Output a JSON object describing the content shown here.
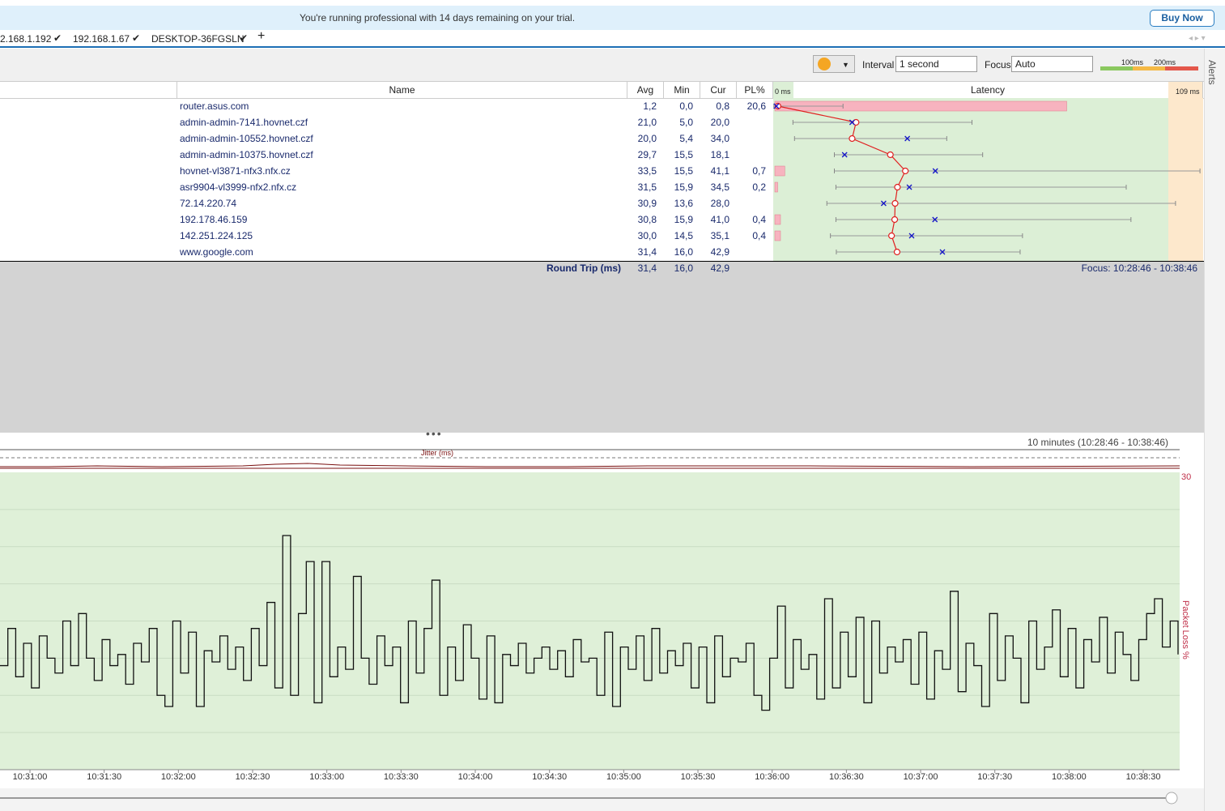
{
  "banner": {
    "message": "You're running professional with 14 days remaining on your trial.",
    "button": "Buy Now"
  },
  "tabs": [
    "2.168.1.192",
    "192.168.1.67",
    "DESKTOP-36FGSLN"
  ],
  "toolbar": {
    "interval_label": "Interval",
    "interval": "1 second",
    "focus_label": "Focus",
    "focus": "Auto",
    "legend": [
      "100ms",
      "200ms"
    ],
    "alerts": "Alerts"
  },
  "table": {
    "columns": [
      "Name",
      "Avg",
      "Min",
      "Cur",
      "PL%",
      "Latency"
    ],
    "latency_ticks": [
      {
        "value": 0,
        "label": "0 ms"
      },
      {
        "value": 109,
        "label": "109 ms"
      }
    ],
    "rows": [
      {
        "name": "router.asus.com",
        "avg": {
          "value": 1.2,
          "label": "1,2"
        },
        "min": {
          "value": 0.0,
          "label": "0,0"
        },
        "cur": {
          "value": 0.8,
          "label": "0,8"
        },
        "pl": {
          "value": 20.6,
          "label": "20,6"
        },
        "max": 17.7
      },
      {
        "name": "admin-admin-7141.hovnet.czf",
        "avg": {
          "value": 21.0,
          "label": "21,0"
        },
        "min": {
          "value": 5.0,
          "label": "5,0"
        },
        "cur": {
          "value": 20.0,
          "label": "20,0"
        },
        "pl": null,
        "max": 50.4
      },
      {
        "name": "admin-admin-10552.hovnet.czf",
        "avg": {
          "value": 20.0,
          "label": "20,0"
        },
        "min": {
          "value": 5.4,
          "label": "5,4"
        },
        "cur": {
          "value": 34.0,
          "label": "34,0"
        },
        "pl": null,
        "max": 44.0
      },
      {
        "name": "admin-admin-10375.hovnet.czf",
        "avg": {
          "value": 29.7,
          "label": "29,7"
        },
        "min": {
          "value": 15.5,
          "label": "15,5"
        },
        "cur": {
          "value": 18.1,
          "label": "18,1"
        },
        "pl": null,
        "max": 53.1
      },
      {
        "name": "hovnet-vl3871-nfx3.nfx.cz",
        "avg": {
          "value": 33.5,
          "label": "33,5"
        },
        "min": {
          "value": 15.5,
          "label": "15,5"
        },
        "cur": {
          "value": 41.1,
          "label": "41,1"
        },
        "pl": {
          "value": 0.7,
          "label": "0,7"
        },
        "max": 108.2
      },
      {
        "name": "asr9904-vl3999-nfx2.nfx.cz",
        "avg": {
          "value": 31.5,
          "label": "31,5"
        },
        "min": {
          "value": 15.9,
          "label": "15,9"
        },
        "cur": {
          "value": 34.5,
          "label": "34,5"
        },
        "pl": {
          "value": 0.2,
          "label": "0,2"
        },
        "max": 89.5
      },
      {
        "name": "72.14.220.74",
        "avg": {
          "value": 30.9,
          "label": "30,9"
        },
        "min": {
          "value": 13.6,
          "label": "13,6"
        },
        "cur": {
          "value": 28.0,
          "label": "28,0"
        },
        "pl": null,
        "max": 102.0
      },
      {
        "name": "192.178.46.159",
        "avg": {
          "value": 30.8,
          "label": "30,8"
        },
        "min": {
          "value": 15.9,
          "label": "15,9"
        },
        "cur": {
          "value": 41.0,
          "label": "41,0"
        },
        "pl": {
          "value": 0.4,
          "label": "0,4"
        },
        "max": 90.7
      },
      {
        "name": "142.251.224.125",
        "avg": {
          "value": 30.0,
          "label": "30,0"
        },
        "min": {
          "value": 14.5,
          "label": "14,5"
        },
        "cur": {
          "value": 35.1,
          "label": "35,1"
        },
        "pl": {
          "value": 0.4,
          "label": "0,4"
        },
        "max": 63.2
      },
      {
        "name": "www.google.com",
        "avg": {
          "value": 31.4,
          "label": "31,4"
        },
        "min": {
          "value": 16.0,
          "label": "16,0"
        },
        "cur": {
          "value": 42.9,
          "label": "42,9"
        },
        "pl": null,
        "max": 62.6
      }
    ],
    "summary": {
      "label": "Round Trip (ms)",
      "avg": "31,4",
      "min": "16,0",
      "cur": "42,9"
    },
    "focus": "Focus: 10:28:46 - 10:38:46"
  },
  "timeline": {
    "range": "10 minutes (10:28:46 - 10:38:46)",
    "jitter_label": "Jitter (ms)",
    "right_axis_label": "Packet Loss %",
    "right_axis_ticks": [
      30
    ],
    "ylim": [
      0,
      80
    ],
    "grid_lines": [
      10,
      20,
      30,
      40,
      50,
      60,
      70
    ],
    "xticks": [
      "10:31:00",
      "10:31:30",
      "10:32:00",
      "10:32:30",
      "10:33:00",
      "10:33:30",
      "10:34:00",
      "10:34:30",
      "10:35:00",
      "10:35:30",
      "10:36:00",
      "10:36:30",
      "10:37:00",
      "10:37:30",
      "10:38:00",
      "10:38:30"
    ],
    "values": [
      28,
      38,
      25,
      34,
      22,
      36,
      30,
      26,
      40,
      28,
      42,
      30,
      24,
      35,
      28,
      31,
      23,
      34,
      29,
      38,
      20,
      17,
      40,
      26,
      37,
      17,
      32,
      29,
      36,
      27,
      33,
      24,
      38,
      28,
      45,
      22,
      63,
      20,
      42,
      56,
      18,
      56,
      25,
      33,
      27,
      52,
      30,
      23,
      36,
      28,
      33,
      18,
      40,
      26,
      38,
      51,
      20,
      33,
      24,
      39,
      30,
      19,
      36,
      18,
      31,
      28,
      34,
      26,
      30,
      33,
      27,
      32,
      25,
      35,
      29,
      30,
      20,
      37,
      17,
      33,
      27,
      36,
      24,
      38,
      26,
      32,
      28,
      34,
      22,
      33,
      18,
      36,
      25,
      30,
      29,
      34,
      20,
      16,
      30,
      44,
      22,
      35,
      27,
      31,
      19,
      46,
      22,
      37,
      25,
      41,
      18,
      40,
      26,
      33,
      29,
      35,
      23,
      37,
      19,
      32,
      27,
      48,
      21,
      34,
      28,
      17,
      42,
      24,
      36,
      30,
      18,
      40,
      27,
      33,
      43,
      25,
      38,
      22,
      35,
      29,
      41,
      26,
      37,
      31,
      24,
      35,
      42,
      46,
      33,
      40,
      31
    ]
  }
}
